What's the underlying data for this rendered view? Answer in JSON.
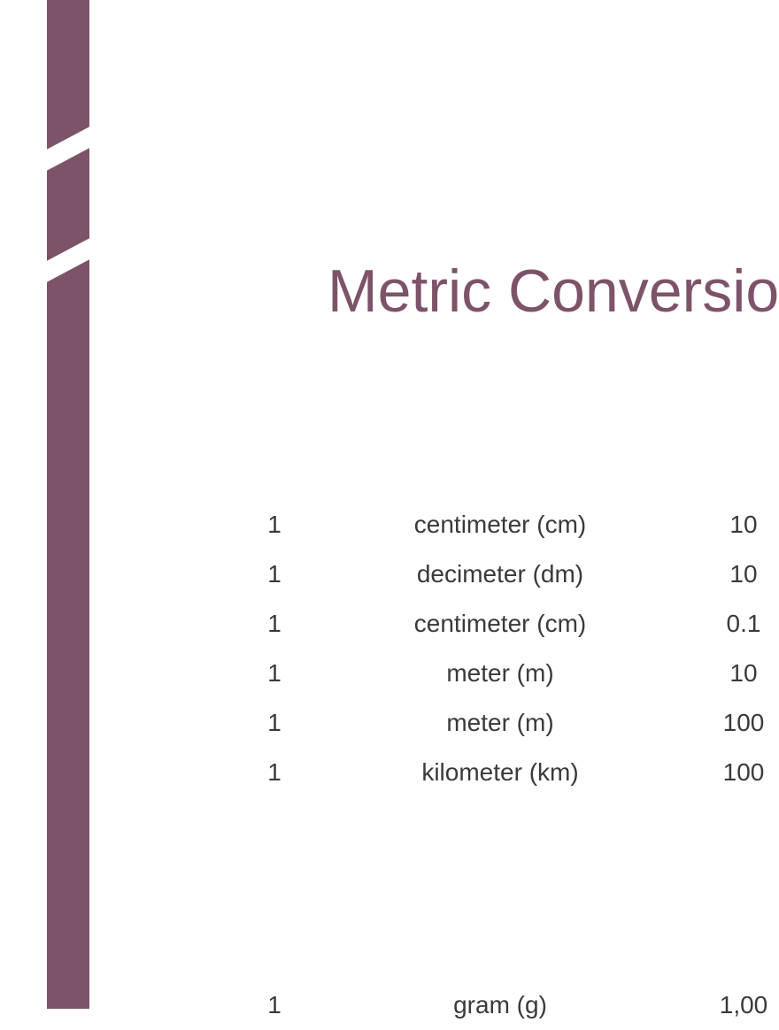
{
  "title": "Metric Conversions",
  "accent_color": "#7d536a",
  "text_color": "#3a3a3a",
  "background_color": "#ffffff",
  "title_fontsize": 68,
  "body_fontsize": 28,
  "table1": {
    "rows": [
      {
        "qty": "1",
        "unit": "centimeter (cm)",
        "val": "10"
      },
      {
        "qty": "1",
        "unit": "decimeter (dm)",
        "val": "10"
      },
      {
        "qty": "1",
        "unit": "centimeter (cm)",
        "val": "0.1"
      },
      {
        "qty": "1",
        "unit": "meter (m)",
        "val": "10"
      },
      {
        "qty": "1",
        "unit": "meter (m)",
        "val": "100"
      },
      {
        "qty": "1",
        "unit": "kilometer (km)",
        "val": "100"
      }
    ]
  },
  "table2": {
    "rows": [
      {
        "qty": "1",
        "unit": "gram (g)",
        "val": "1,00"
      }
    ]
  }
}
